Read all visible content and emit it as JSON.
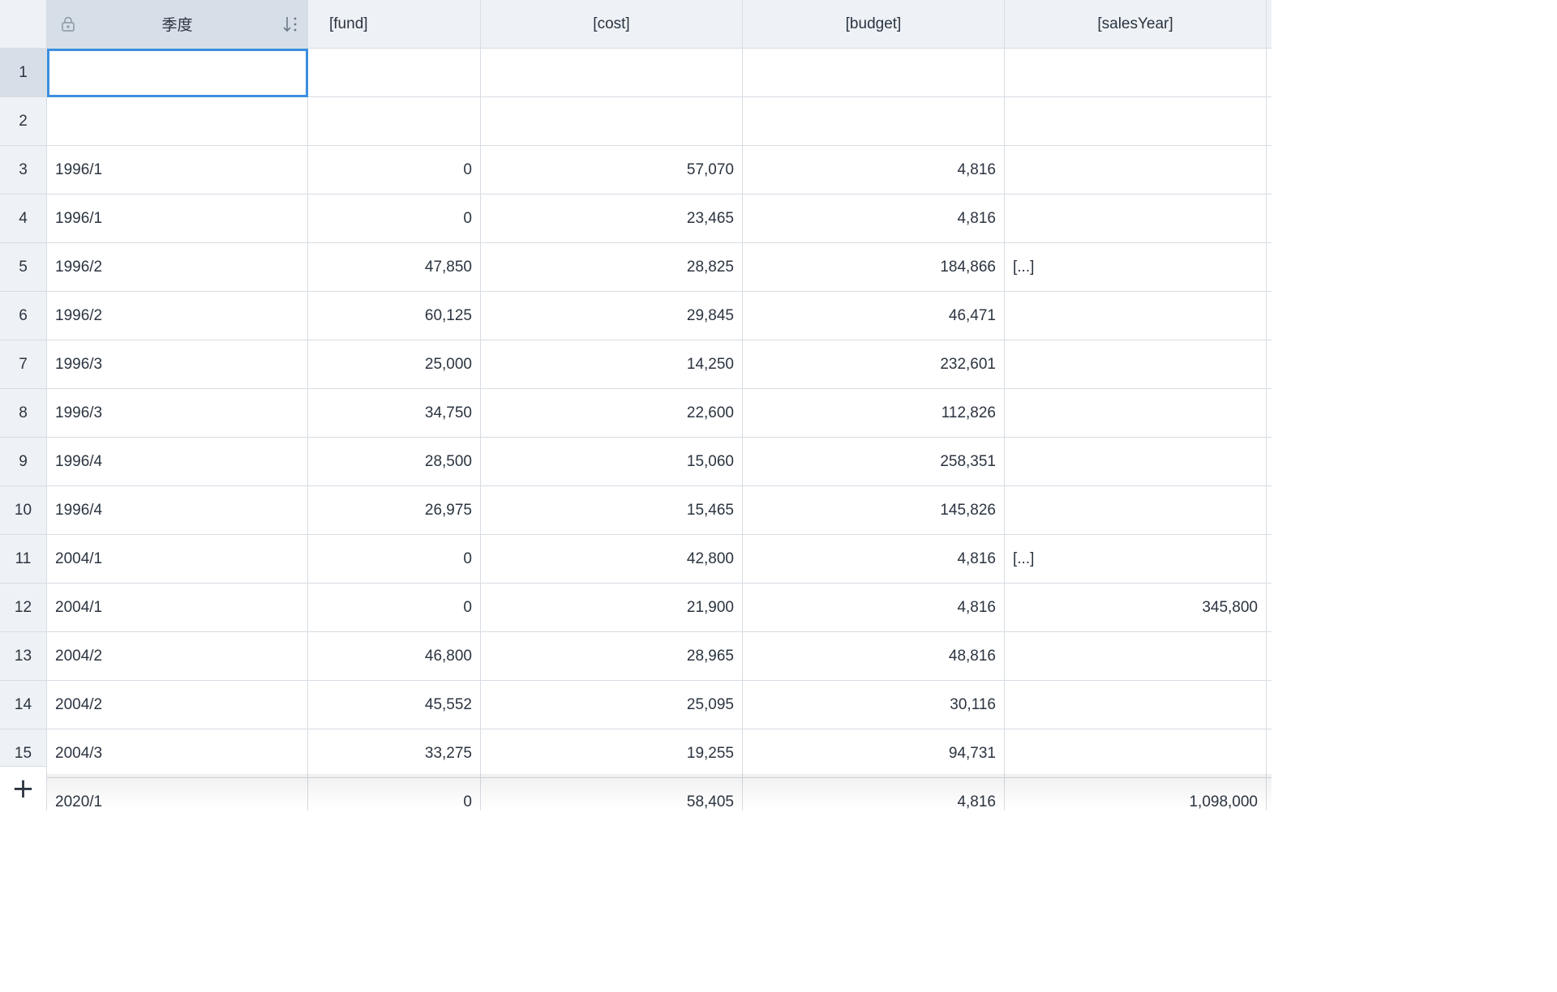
{
  "columns": {
    "season": "季度",
    "fund": "[fund]",
    "cost": "[cost]",
    "budget": "[budget]",
    "salesYear": "[salesYear]"
  },
  "icons": {
    "lock": "lock-icon",
    "sort": "sort-descending-icon",
    "add": "plus-icon"
  },
  "add_label": "+",
  "colors": {
    "header_bg": "#eef2f6",
    "header_active_bg": "#d6dee7",
    "selection": "#3b8fe0",
    "grid_line": "#d7dde4",
    "text": "#2b3440"
  },
  "rows": [
    {
      "n": "1",
      "season": "",
      "fund": "",
      "cost": "",
      "budget": "",
      "salesYear": ""
    },
    {
      "n": "2",
      "season": "",
      "fund": "",
      "cost": "",
      "budget": "",
      "salesYear": ""
    },
    {
      "n": "3",
      "season": "1996/1",
      "fund": "0",
      "cost": "57,070",
      "budget": "4,816",
      "salesYear": ""
    },
    {
      "n": "4",
      "season": "1996/1",
      "fund": "0",
      "cost": "23,465",
      "budget": "4,816",
      "salesYear": ""
    },
    {
      "n": "5",
      "season": "1996/2",
      "fund": "47,850",
      "cost": "28,825",
      "budget": "184,866",
      "salesYear": "[...]"
    },
    {
      "n": "6",
      "season": "1996/2",
      "fund": "60,125",
      "cost": "29,845",
      "budget": "46,471",
      "salesYear": ""
    },
    {
      "n": "7",
      "season": "1996/3",
      "fund": "25,000",
      "cost": "14,250",
      "budget": "232,601",
      "salesYear": ""
    },
    {
      "n": "8",
      "season": "1996/3",
      "fund": "34,750",
      "cost": "22,600",
      "budget": "112,826",
      "salesYear": ""
    },
    {
      "n": "9",
      "season": "1996/4",
      "fund": "28,500",
      "cost": "15,060",
      "budget": "258,351",
      "salesYear": ""
    },
    {
      "n": "10",
      "season": "1996/4",
      "fund": "26,975",
      "cost": "15,465",
      "budget": "145,826",
      "salesYear": ""
    },
    {
      "n": "11",
      "season": "2004/1",
      "fund": "0",
      "cost": "42,800",
      "budget": "4,816",
      "salesYear": "[...]"
    },
    {
      "n": "12",
      "season": "2004/1",
      "fund": "0",
      "cost": "21,900",
      "budget": "4,816",
      "salesYear": "345,800"
    },
    {
      "n": "13",
      "season": "2004/2",
      "fund": "46,800",
      "cost": "28,965",
      "budget": "48,816",
      "salesYear": ""
    },
    {
      "n": "14",
      "season": "2004/2",
      "fund": "45,552",
      "cost": "25,095",
      "budget": "30,116",
      "salesYear": ""
    },
    {
      "n": "15",
      "season": "2004/3",
      "fund": "33,275",
      "cost": "19,255",
      "budget": "94,731",
      "salesYear": ""
    },
    {
      "n": "",
      "season": "2020/1",
      "fund": "0",
      "cost": "58,405",
      "budget": "4,816",
      "salesYear": "1,098,000"
    }
  ]
}
